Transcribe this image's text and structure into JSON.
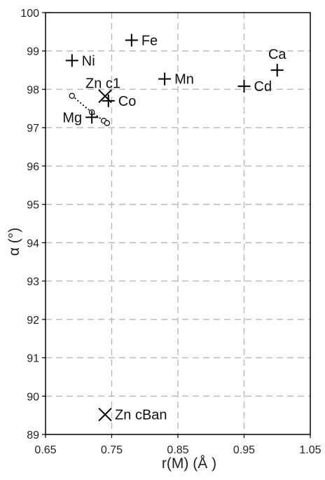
{
  "chart_data": {
    "type": "scatter",
    "xlabel": "r(M) (Å )",
    "ylabel": "α (°)",
    "xlim": [
      0.65,
      1.05
    ],
    "ylim": [
      89,
      100
    ],
    "x_ticks": [
      "0.65",
      "0.75",
      "0.85",
      "0.95",
      "1.05"
    ],
    "y_ticks": [
      "89",
      "90",
      "91",
      "92",
      "93",
      "94",
      "95",
      "96",
      "97",
      "98",
      "99",
      "100"
    ],
    "grid": "dashed",
    "points": [
      {
        "label": "Fe",
        "x": 0.78,
        "y": 99.28,
        "marker": "plus",
        "label_pos": "right"
      },
      {
        "label": "Ni",
        "x": 0.69,
        "y": 98.75,
        "marker": "plus",
        "label_pos": "right"
      },
      {
        "label": "Mn",
        "x": 0.83,
        "y": 98.27,
        "marker": "plus",
        "label_pos": "right"
      },
      {
        "label": "Ca",
        "x": 1.0,
        "y": 98.5,
        "marker": "plus",
        "label_pos": "above"
      },
      {
        "label": "Cd",
        "x": 0.95,
        "y": 98.08,
        "marker": "plus",
        "label_pos": "right"
      },
      {
        "label": "Co",
        "x": 0.745,
        "y": 97.7,
        "marker": "plus",
        "label_pos": "right"
      },
      {
        "label": "Mg",
        "x": 0.72,
        "y": 97.27,
        "marker": "plus",
        "label_pos": "left"
      },
      {
        "label": "Zn c1",
        "x": 0.74,
        "y": 97.82,
        "marker": "x",
        "label_pos": "above"
      },
      {
        "label": "Zn cBan",
        "x": 0.74,
        "y": 89.52,
        "marker": "x",
        "label_pos": "right"
      }
    ],
    "dotted_series": {
      "x": [
        0.69,
        0.72,
        0.738,
        0.743
      ],
      "y": [
        97.83,
        97.4,
        97.18,
        97.12
      ],
      "marker": "open-circle",
      "line": "dotted"
    }
  }
}
